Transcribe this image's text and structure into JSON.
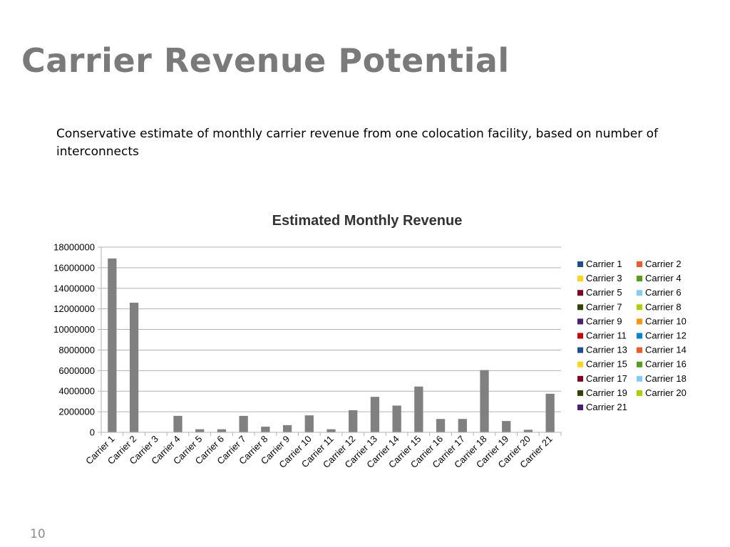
{
  "slide": {
    "title": "Carrier Revenue Potential",
    "subtitle": "Conservative estimate of monthly carrier revenue from one colocation facility, based on number of interconnects",
    "page_number": "10"
  },
  "chart_data": {
    "type": "bar",
    "title": "Estimated Monthly Revenue",
    "xlabel": "",
    "ylabel": "",
    "ylim": [
      0,
      18000000
    ],
    "yticks": [
      0,
      2000000,
      4000000,
      6000000,
      8000000,
      10000000,
      12000000,
      14000000,
      16000000,
      18000000
    ],
    "grid": true,
    "legend_placement": "right",
    "bar_color": "#808080",
    "categories": [
      "Carrier 1",
      "Carrier 2",
      "Carrier 3",
      "Carrier 4",
      "Carrier 5",
      "Carrier 6",
      "Carrier 7",
      "Carrier 8",
      "Carrier 9",
      "Carrier 10",
      "Carrier 11",
      "Carrier 12",
      "Carrier 13",
      "Carrier 14",
      "Carrier 15",
      "Carrier 16",
      "Carrier 17",
      "Carrier 18",
      "Carrier 19",
      "Carrier 20",
      "Carrier 21"
    ],
    "values": [
      16900000,
      12600000,
      0,
      1600000,
      300000,
      300000,
      1600000,
      550000,
      700000,
      1650000,
      300000,
      2150000,
      3450000,
      2600000,
      4450000,
      1300000,
      1300000,
      6050000,
      1100000,
      250000,
      3750000
    ],
    "legend": [
      {
        "label": "Carrier 1",
        "color": "#1F4E8C"
      },
      {
        "label": "Carrier 2",
        "color": "#F05A28"
      },
      {
        "label": "Carrier 3",
        "color": "#FFD320"
      },
      {
        "label": "Carrier 4",
        "color": "#579D1C"
      },
      {
        "label": "Carrier 5",
        "color": "#7E0021"
      },
      {
        "label": "Carrier 6",
        "color": "#83CAFF"
      },
      {
        "label": "Carrier 7",
        "color": "#314004"
      },
      {
        "label": "Carrier 8",
        "color": "#AECF00"
      },
      {
        "label": "Carrier 9",
        "color": "#4B1F6F"
      },
      {
        "label": "Carrier 10",
        "color": "#FF950E"
      },
      {
        "label": "Carrier 11",
        "color": "#C5000B"
      },
      {
        "label": "Carrier 12",
        "color": "#0084D1"
      },
      {
        "label": "Carrier 13",
        "color": "#1F4E8C"
      },
      {
        "label": "Carrier 14",
        "color": "#F05A28"
      },
      {
        "label": "Carrier 15",
        "color": "#FFD320"
      },
      {
        "label": "Carrier 16",
        "color": "#579D1C"
      },
      {
        "label": "Carrier 17",
        "color": "#7E0021"
      },
      {
        "label": "Carrier 18",
        "color": "#83CAFF"
      },
      {
        "label": "Carrier 19",
        "color": "#314004"
      },
      {
        "label": "Carrier 20",
        "color": "#AECF00"
      },
      {
        "label": "Carrier 21",
        "color": "#4B1F6F"
      }
    ]
  }
}
